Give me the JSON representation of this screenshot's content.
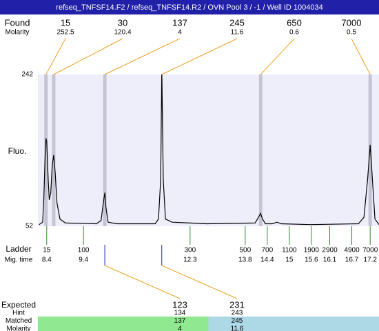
{
  "title": "refseq_TNFSF14.F2 / refseq_TNFSF14.R2 / OVN Pool 3 / -1 / Well ID 1004034",
  "found": {
    "label": "Found",
    "sublabel": "Molarity",
    "peaks": [
      {
        "size": 15,
        "molarity": 252.5,
        "time": 8.38
      },
      {
        "size": 30,
        "molarity": 120.4,
        "time": 8.59
      },
      {
        "size": 137,
        "molarity": 4,
        "time": 9.98
      },
      {
        "size": 245,
        "molarity": 11.6,
        "time": 11.53
      },
      {
        "size": 650,
        "molarity": 0.6,
        "time": 14.22
      },
      {
        "size": 7000,
        "molarity": 0.5,
        "time": 17.2
      }
    ]
  },
  "plot": {
    "y_label": "Fluo.",
    "ylim": [
      52,
      242
    ],
    "yticks": [
      52,
      242
    ],
    "time_range": [
      8.16,
      17.44
    ],
    "trace": {
      "x": [
        8.19,
        8.29,
        8.32,
        8.36,
        8.38,
        8.4,
        8.44,
        8.47,
        8.51,
        8.55,
        8.59,
        8.63,
        8.68,
        8.76,
        8.91,
        9.75,
        9.88,
        9.94,
        9.98,
        10.01,
        10.07,
        10.31,
        11.35,
        11.44,
        11.5,
        11.53,
        11.57,
        11.63,
        11.81,
        12.75,
        14.07,
        14.16,
        14.22,
        14.27,
        14.35,
        14.53,
        14.67,
        14.78,
        15.57,
        16.88,
        17.03,
        17.13,
        17.2,
        17.26,
        17.33,
        17.44
      ],
      "y": [
        54,
        57,
        85,
        145,
        162,
        158,
        111,
        85,
        94,
        128,
        141,
        119,
        81,
        61,
        56,
        55,
        59,
        81,
        94,
        76,
        57,
        55,
        55,
        61,
        111,
        249,
        111,
        61,
        57,
        55,
        56,
        63,
        68,
        61,
        55,
        55,
        57,
        55,
        54,
        55,
        63,
        111,
        154,
        111,
        61,
        54
      ]
    }
  },
  "ladder": {
    "label": "Ladder",
    "sublabel": "Mig. time",
    "sizes": [
      15,
      100,
      300,
      500,
      700,
      1100,
      1900,
      2900,
      4900,
      7000
    ],
    "times": [
      8.4,
      9.4,
      12.3,
      13.8,
      14.4,
      15,
      15.6,
      16.1,
      16.7,
      17.2
    ]
  },
  "expected": {
    "label": "Expected",
    "rows": [
      "Hint",
      "Matched",
      "Molarity"
    ],
    "items": [
      {
        "expected": 123,
        "hint": 134,
        "matched": 137,
        "molarity": 4,
        "color": "#90e890"
      },
      {
        "expected": 231,
        "hint": 243,
        "matched": 245,
        "molarity": 11.6,
        "color": "#add8e6"
      }
    ]
  }
}
